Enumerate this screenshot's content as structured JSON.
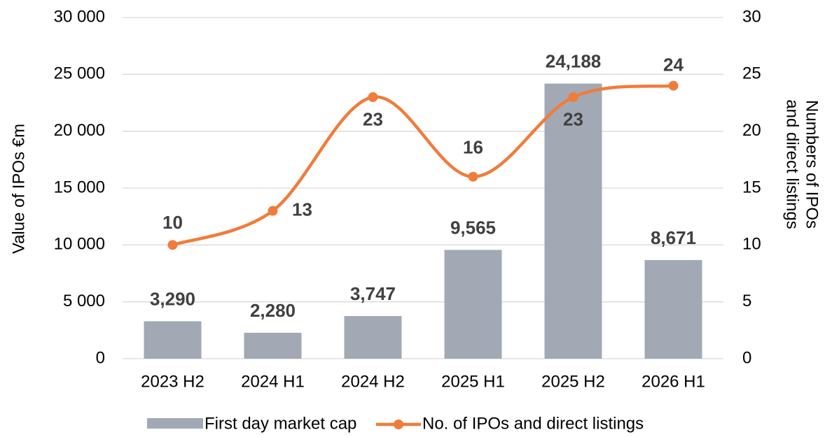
{
  "chart_data": {
    "type": "bar_line",
    "categories": [
      "2023 H2",
      "2024 H1",
      "2024 H2",
      "2025 H1",
      "2025 H2",
      "2026 H1"
    ],
    "series": [
      {
        "name": "First day market cap",
        "type": "bar",
        "color": "#a2a9b4",
        "axis": "y",
        "values": [
          3290,
          2280,
          3747,
          9565,
          24188,
          8671
        ],
        "value_labels": [
          "3,290",
          "2,280",
          "3,747",
          "9,565",
          "24,188",
          "8,671"
        ]
      },
      {
        "name": "No. of IPOs and direct listings",
        "type": "line",
        "color": "#f07c3b",
        "axis": "y2",
        "values": [
          10,
          13,
          23,
          16,
          23,
          24
        ]
      }
    ],
    "y_label": "Value of IPOs €m",
    "y2_label": [
      "Numbers of IPOs",
      "and direct listings"
    ],
    "ylim": [
      0,
      30000
    ],
    "yticks": [
      0,
      {
        "value": 5000,
        "label": "5 000"
      },
      {
        "value": 10000,
        "label": "10 000"
      },
      {
        "value": 15000,
        "label": "15 000"
      },
      {
        "value": 20000,
        "label": "20 000"
      },
      {
        "value": 25000,
        "label": "25 000"
      },
      {
        "value": 30000,
        "label": "30 000"
      }
    ],
    "y2lim": [
      0,
      30
    ],
    "y2ticks": [
      0,
      5,
      10,
      15,
      20,
      25,
      30
    ],
    "grid": true,
    "legend": "bottom"
  }
}
